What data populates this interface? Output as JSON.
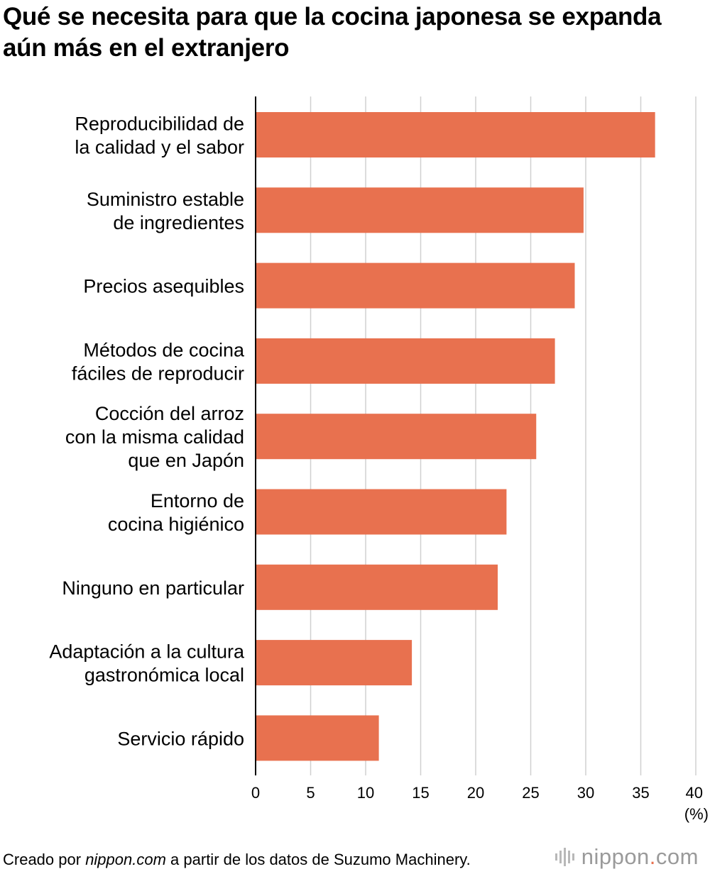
{
  "title": "Qué se necesita para que la cocina japonesa se expanda aún más en el extranjero",
  "chart_data": {
    "type": "bar",
    "orientation": "horizontal",
    "title": "Qué se necesita para que la cocina japonesa se expanda aún más en el extranjero",
    "categories": [
      [
        "Reproducibilidad de",
        "la calidad y el sabor"
      ],
      [
        "Suministro estable",
        "de ingredientes"
      ],
      [
        "Precios asequibles"
      ],
      [
        "Métodos de cocina",
        "fáciles de reproducir"
      ],
      [
        "Cocción del arroz",
        "con la misma calidad",
        "que en Japón"
      ],
      [
        "Entorno de",
        "cocina higiénico"
      ],
      [
        "Ninguno en particular"
      ],
      [
        "Adaptación a la cultura",
        "gastronómica local"
      ],
      [
        "Servicio rápido"
      ]
    ],
    "values": [
      36.3,
      29.8,
      29.0,
      27.2,
      25.5,
      22.8,
      22.0,
      14.2,
      11.2
    ],
    "xlim": [
      0,
      40
    ],
    "xticks": [
      0,
      5,
      10,
      15,
      20,
      25,
      30,
      35,
      40
    ],
    "xunit": "(%)",
    "bar_color": "#e8714f",
    "grid_color": "#d0d0d0",
    "grid": true
  },
  "footer": {
    "prefix": "Creado por ",
    "source_site": "nippon.com",
    "suffix": " a partir de los datos de Suzumo Machinery."
  },
  "logo": {
    "name": "nippon",
    "dot": ".",
    "tld": "com"
  }
}
